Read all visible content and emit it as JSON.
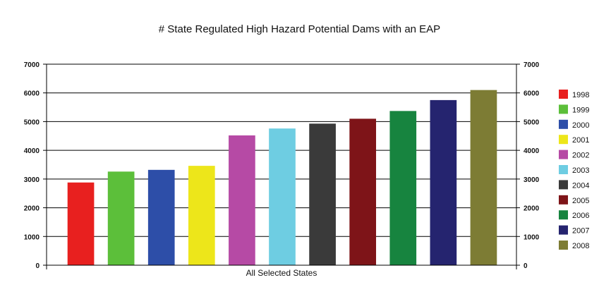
{
  "chart_data": {
    "type": "bar",
    "title": "# State Regulated High Hazard Potential Dams with an EAP",
    "category_label": "All Selected States",
    "ylim": [
      0,
      7000
    ],
    "yticks": [
      0,
      1000,
      2000,
      3000,
      4000,
      5000,
      6000,
      7000
    ],
    "grid": true,
    "legend_position": "right",
    "secondary_axis": "right, same scale",
    "series": [
      {
        "name": "1998",
        "value": 2880,
        "color": "#e8201f"
      },
      {
        "name": "1999",
        "value": 3260,
        "color": "#5cbf3a"
      },
      {
        "name": "2000",
        "value": 3320,
        "color": "#2d4ea8"
      },
      {
        "name": "2001",
        "value": 3460,
        "color": "#ede61a"
      },
      {
        "name": "2002",
        "value": 4520,
        "color": "#b64aa5"
      },
      {
        "name": "2003",
        "value": 4760,
        "color": "#6ecde2"
      },
      {
        "name": "2004",
        "value": 4930,
        "color": "#3a3a3a"
      },
      {
        "name": "2005",
        "value": 5100,
        "color": "#7e1418"
      },
      {
        "name": "2006",
        "value": 5370,
        "color": "#17843f"
      },
      {
        "name": "2007",
        "value": 5750,
        "color": "#25246f"
      },
      {
        "name": "2008",
        "value": 6100,
        "color": "#7d7c34"
      }
    ]
  }
}
